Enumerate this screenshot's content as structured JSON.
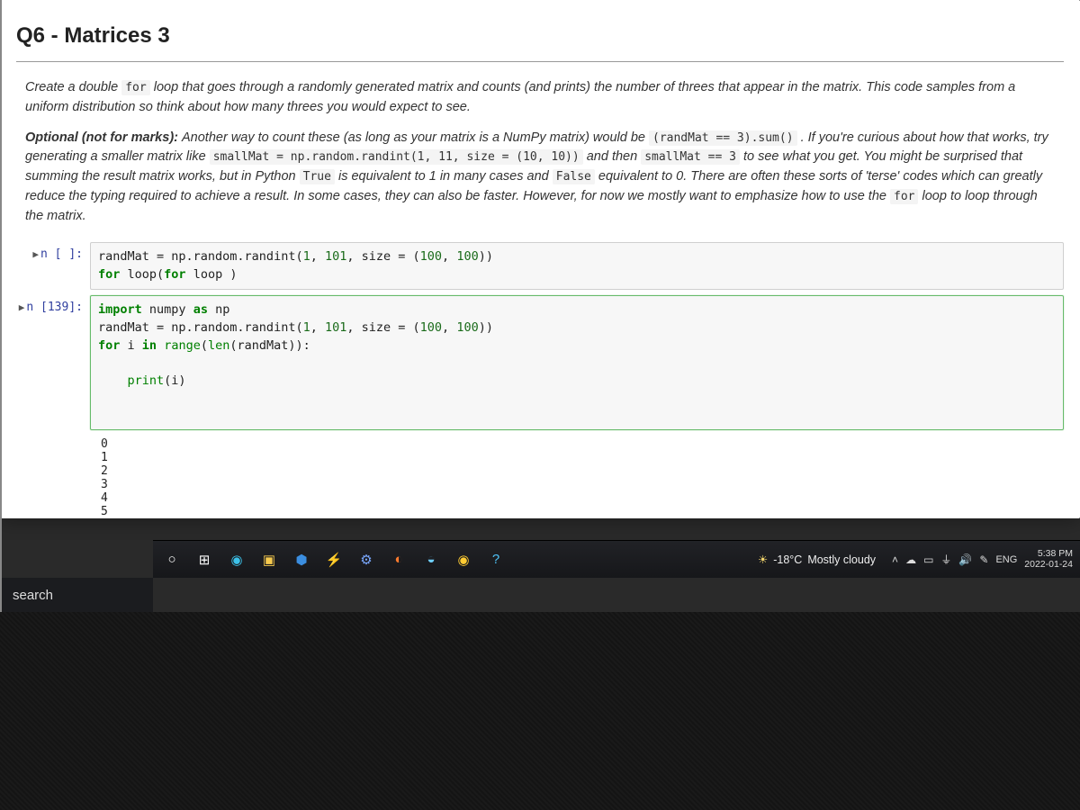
{
  "heading": "Q6 - Matrices 3",
  "paragraph1_pre": "Create a double ",
  "paragraph1_code": "for",
  "paragraph1_post": " loop that goes through a randomly generated matrix and counts (and prints) the number of threes that appear in the matrix. This code samples from a uniform distribution so think about how many threes you would expect to see.",
  "optional_label": "Optional (not for marks): ",
  "optional_body_1": "Another way to count these (as long as your matrix is a NumPy matrix) would be ",
  "optional_code_1": "(randMat == 3).sum()",
  "optional_body_2": " . If you're curious about how that works, try generating a smaller matrix like ",
  "optional_code_2": "smallMat = np.random.randint(1, 11, size = (10, 10))",
  "optional_body_3": " and then ",
  "optional_code_3": "smallMat == 3",
  "optional_body_4": " to see what you get. You might be surprised that summing the result matrix works, but in Python ",
  "optional_code_4": "True",
  "optional_body_5": " is equivalent to 1 in many cases and ",
  "optional_code_5": "False",
  "optional_body_6": " equivalent to 0. There are often these sorts of 'terse' codes which can greatly reduce the typing required to achieve a result. In some cases, they can also be faster. However, for now we mostly want to emphasize how to use the ",
  "optional_code_6": "for",
  "optional_body_7": " loop to loop through the matrix.",
  "cell1_prompt": "n [ ]:",
  "cell1_code_html": "randMat = np.random.randint(<span class='num'>1</span>, <span class='num'>101</span>, size = (<span class='num'>100</span>, <span class='num'>100</span>))\n<span class='kw'>for</span> loop(<span class='kw'>for</span> loop )",
  "cell2_prompt": "n [139]:",
  "cell2_code_html": "<span class='kw'>import</span> numpy <span class='kw'>as</span> np\nrandMat = np.random.randint(<span class='num'>1</span>, <span class='num'>101</span>, size = (<span class='num'>100</span>, <span class='num'>100</span>))\n<span class='kw'>for</span> i <span class='kw'>in</span> <span class='bi'>range</span>(<span class='bi'>len</span>(randMat)):\n\n    <span class='bi'>print</span>(i)",
  "output_lines": "0\n1\n2\n3\n4\n5",
  "search_placeholder": "search",
  "weather_temp": "-18°C",
  "weather_desc": "Mostly cloudy",
  "lang": "ENG",
  "clock_time": "5:38 PM",
  "clock_date": "2022-01-24",
  "colors": {
    "notebook_bg": "#ffffff",
    "code_bg": "#f7f7f7",
    "code_border": "#cfcfcf",
    "code_border_active": "#66BB6A",
    "prompt_color": "#303F9F",
    "keyword": "#008000",
    "taskbar_bg": "#16171a",
    "bezel": "#141414"
  },
  "taskbar_icons": [
    {
      "name": "cortana-icon",
      "glyph": "○",
      "color": "#ffffff"
    },
    {
      "name": "task-view-icon",
      "glyph": "⊞",
      "color": "#ffffff"
    },
    {
      "name": "edge-icon",
      "glyph": "◉",
      "color": "#3cc1e9"
    },
    {
      "name": "explorer-icon",
      "glyph": "▣",
      "color": "#f5c94e"
    },
    {
      "name": "store-icon",
      "glyph": "⬢",
      "color": "#3b8ee0"
    },
    {
      "name": "power-icon",
      "glyph": "⚡",
      "color": "#ffd24a"
    },
    {
      "name": "settings-icon",
      "glyph": "⚙",
      "color": "#7aa8ff"
    },
    {
      "name": "firefox-icon",
      "glyph": "◐",
      "color": "#ff7b2e"
    },
    {
      "name": "paint-icon",
      "glyph": "◒",
      "color": "#6fd0ff"
    },
    {
      "name": "chrome-icon",
      "glyph": "◉",
      "color": "#ffcc33"
    },
    {
      "name": "help-icon",
      "glyph": "?",
      "color": "#4fc3f7"
    }
  ],
  "tray_icons": [
    {
      "name": "chevron-up-icon",
      "glyph": "˄"
    },
    {
      "name": "onedrive-icon",
      "glyph": "☁"
    },
    {
      "name": "battery-icon",
      "glyph": "▭"
    },
    {
      "name": "wifi-icon",
      "glyph": "⏚"
    },
    {
      "name": "volume-icon",
      "glyph": "🔊"
    },
    {
      "name": "pen-icon",
      "glyph": "✎"
    }
  ]
}
